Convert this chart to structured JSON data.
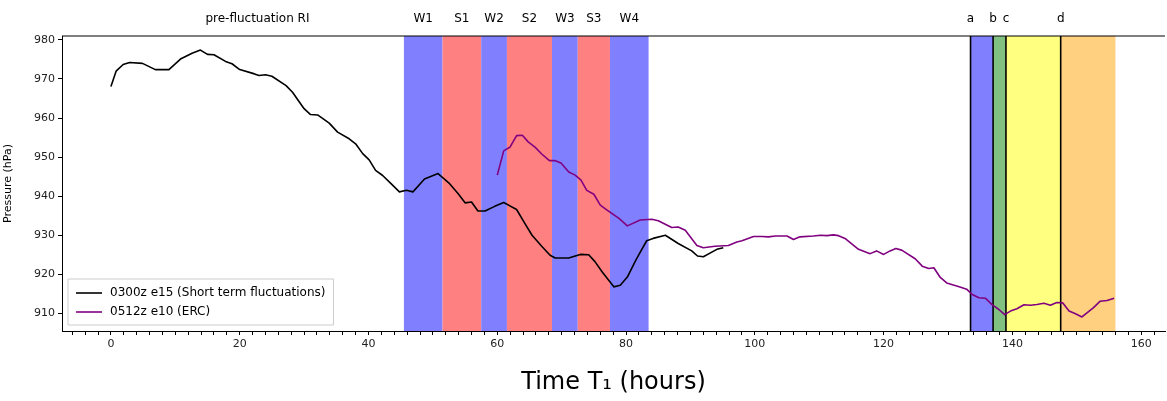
{
  "chart_data": {
    "type": "line",
    "xlabel": "Time T₁ (hours)",
    "ylabel": "Pressure (hPa)",
    "xlim": [
      -7.6,
      163.7
    ],
    "ylim": [
      905.5,
      981
    ],
    "xticks": [
      {
        "value": -6,
        "label": null
      },
      {
        "value": -4,
        "label": null
      },
      {
        "value": -2,
        "label": null
      },
      0,
      {
        "value": 2,
        "label": null
      },
      {
        "value": 4,
        "label": null
      },
      {
        "value": 6,
        "label": null
      },
      {
        "value": 8,
        "label": null
      },
      {
        "value": 10,
        "label": null
      },
      {
        "value": 12,
        "label": null
      },
      {
        "value": 14,
        "label": null
      },
      {
        "value": 16,
        "label": null
      },
      {
        "value": 18,
        "label": null
      },
      20,
      {
        "value": 22,
        "label": null
      },
      {
        "value": 24,
        "label": null
      },
      {
        "value": 26,
        "label": null
      },
      {
        "value": 28,
        "label": null
      },
      {
        "value": 30,
        "label": null
      },
      {
        "value": 32,
        "label": null
      },
      {
        "value": 34,
        "label": null
      },
      {
        "value": 36,
        "label": null
      },
      {
        "value": 38,
        "label": null
      },
      40,
      {
        "value": 42,
        "label": null
      },
      {
        "value": 44,
        "label": null
      },
      {
        "value": 46,
        "label": null
      },
      {
        "value": 48,
        "label": null
      },
      {
        "value": 50,
        "label": null
      },
      {
        "value": 52,
        "label": null
      },
      {
        "value": 54,
        "label": null
      },
      {
        "value": 56,
        "label": null
      },
      {
        "value": 58,
        "label": null
      },
      60,
      {
        "value": 62,
        "label": null
      },
      {
        "value": 64,
        "label": null
      },
      {
        "value": 66,
        "label": null
      },
      {
        "value": 68,
        "label": null
      },
      {
        "value": 70,
        "label": null
      },
      {
        "value": 72,
        "label": null
      },
      {
        "value": 74,
        "label": null
      },
      {
        "value": 76,
        "label": null
      },
      {
        "value": 78,
        "label": null
      },
      80,
      {
        "value": 82,
        "label": null
      },
      {
        "value": 84,
        "label": null
      },
      {
        "value": 86,
        "label": null
      },
      {
        "value": 88,
        "label": null
      },
      {
        "value": 90,
        "label": null
      },
      {
        "value": 92,
        "label": null
      },
      {
        "value": 94,
        "label": null
      },
      {
        "value": 96,
        "label": null
      },
      {
        "value": 98,
        "label": null
      },
      100,
      {
        "value": 102,
        "label": null
      },
      {
        "value": 104,
        "label": null
      },
      {
        "value": 106,
        "label": null
      },
      {
        "value": 108,
        "label": null
      },
      {
        "value": 110,
        "label": null
      },
      {
        "value": 112,
        "label": null
      },
      {
        "value": 114,
        "label": null
      },
      {
        "value": 116,
        "label": null
      },
      {
        "value": 118,
        "label": null
      },
      120,
      {
        "value": 122,
        "label": null
      },
      {
        "value": 124,
        "label": null
      },
      {
        "value": 126,
        "label": null
      },
      {
        "value": 128,
        "label": null
      },
      {
        "value": 130,
        "label": null
      },
      {
        "value": 132,
        "label": null
      },
      {
        "value": 134,
        "label": null
      },
      {
        "value": 136,
        "label": null
      },
      {
        "value": 138,
        "label": null
      },
      140,
      {
        "value": 142,
        "label": null
      },
      {
        "value": 144,
        "label": null
      },
      {
        "value": 146,
        "label": null
      },
      {
        "value": 148,
        "label": null
      },
      {
        "value": 150,
        "label": null
      },
      {
        "value": 152,
        "label": null
      },
      {
        "value": 154,
        "label": null
      },
      {
        "value": 156,
        "label": null
      },
      {
        "value": 158,
        "label": null
      },
      160,
      {
        "value": 162,
        "label": null
      }
    ],
    "yticks": [
      910,
      920,
      930,
      940,
      950,
      960,
      970,
      980
    ],
    "legend": "bottom left",
    "marker": "none",
    "line_style": "solid",
    "series": [
      {
        "name": "0300z e15 (Short term fluctuations)",
        "color": "#000000",
        "x": [
          0,
          0.8,
          1.9,
          2.9,
          4.9,
          6.9,
          9.0,
          10.8,
          12.6,
          13.9,
          15.0,
          16.0,
          17.8,
          18.8,
          20,
          21.9,
          23.0,
          24.0,
          25.0,
          27.2,
          28.2,
          30.0,
          31.0,
          32.1,
          33.9,
          35.2,
          37.0,
          38.0,
          39.1,
          40.1,
          41.1,
          42.2,
          43.5,
          44.8,
          45.9,
          46.9,
          48.7,
          50.8,
          52.6,
          53.9,
          55.0,
          56.0,
          57.0,
          58.1,
          59.6,
          61.0,
          63.0,
          64.3,
          65.4,
          66.9,
          68.2,
          69.0,
          71.1,
          72.9,
          74.2,
          75.2,
          76.3,
          78.1,
          79.1,
          80.2,
          81.5,
          83.2,
          84.2,
          86.1,
          88.1,
          90.2,
          91.1,
          92.0,
          94.1,
          95.1
        ],
        "values": [
          968.1,
          972.0,
          973.7,
          974.2,
          974.0,
          972.4,
          972.4,
          975.1,
          976.6,
          977.4,
          976.3,
          976.2,
          974.5,
          973.9,
          972.4,
          971.5,
          970.9,
          971.1,
          970.7,
          968.3,
          966.6,
          962.4,
          960.9,
          960.8,
          958.7,
          956.4,
          954.7,
          953.4,
          950.9,
          949.3,
          946.6,
          945.3,
          943.2,
          941.1,
          941.5,
          941.1,
          944.4,
          945.8,
          943.2,
          940.7,
          938.3,
          938.5,
          936.2,
          936.2,
          937.4,
          938.4,
          936.6,
          933.0,
          930.0,
          927.2,
          924.9,
          924.2,
          924.2,
          925.1,
          925.0,
          923.2,
          920.6,
          916.8,
          917.2,
          919.3,
          923.6,
          928.6,
          929.2,
          930.0,
          927.9,
          926.0,
          924.7,
          924.5,
          926.4,
          926.8
        ]
      },
      {
        "name": "0512z e10 (ERC)",
        "color": "#800080",
        "x": [
          60.0,
          61.0,
          62.0,
          63.0,
          63.9,
          64.8,
          65.9,
          66.9,
          68.1,
          69.0,
          69.9,
          71.1,
          72.1,
          73.0,
          73.9,
          75.0,
          76.0,
          77.0,
          78.9,
          80.2,
          82.2,
          84.0,
          85.0,
          87.1,
          88.1,
          89.2,
          91.0,
          92.0,
          93.8,
          95.9,
          97.2,
          98.0,
          99.8,
          101.1,
          102.1,
          103.2,
          105.0,
          106.0,
          107.0,
          109.1,
          110.2,
          111.2,
          112.2,
          113.0,
          114.0,
          116.1,
          117.9,
          118.9,
          120.0,
          121.0,
          121.9,
          122.8,
          124.9,
          126.0,
          127.0,
          127.8,
          128.8,
          129.8,
          131.6,
          132.9,
          133.7,
          134.8,
          135.8,
          136.8,
          137.9,
          138.8,
          139.7,
          140.7,
          141.8,
          142.8,
          143.8,
          144.9,
          145.9,
          146.9,
          147.8,
          148.8,
          149.8,
          150.8,
          152.6,
          153.6,
          154.7,
          155.8
        ],
        "values": [
          945.4,
          951.6,
          952.6,
          955.5,
          955.6,
          953.9,
          952.5,
          950.8,
          949.1,
          949.1,
          948.5,
          946.2,
          945.4,
          944.1,
          941.5,
          940.5,
          937.7,
          936.5,
          934.3,
          932.4,
          933.9,
          934.1,
          933.7,
          932.0,
          932.1,
          931.3,
          927.4,
          926.8,
          927.2,
          927.4,
          928.3,
          928.6,
          929.7,
          929.7,
          929.6,
          929.8,
          929.8,
          928.9,
          929.6,
          929.8,
          930.0,
          929.9,
          930.1,
          929.9,
          929.2,
          926.4,
          925.3,
          926.0,
          925.1,
          926.0,
          926.6,
          926.2,
          924.0,
          922.1,
          921.5,
          921.7,
          919.2,
          917.8,
          916.9,
          916.2,
          914.9,
          914.0,
          913.9,
          912.3,
          911.0,
          909.7,
          910.6,
          911.2,
          912.2,
          912.1,
          912.3,
          912.6,
          912.1,
          912.8,
          912.7,
          910.6,
          909.9,
          909.1,
          911.5,
          913.1,
          913.3,
          913.9
        ]
      }
    ],
    "bands": [
      {
        "axis": "x",
        "from": 45.5,
        "to": 51.5,
        "label": "W1",
        "color": "#8080ff"
      },
      {
        "axis": "x",
        "from": 51.5,
        "to": 57.5,
        "label": "S1",
        "color": "#ff8080"
      },
      {
        "axis": "x",
        "from": 57.5,
        "to": 61.5,
        "label": "W2",
        "color": "#8080ff"
      },
      {
        "axis": "x",
        "from": 61.5,
        "to": 68.5,
        "label": "S2",
        "color": "#ff8080"
      },
      {
        "axis": "x",
        "from": 68.5,
        "to": 72.5,
        "label": "W3",
        "color": "#8080ff"
      },
      {
        "axis": "x",
        "from": 72.5,
        "to": 77.5,
        "label": "S3",
        "color": "#ff8080"
      },
      {
        "axis": "x",
        "from": 77.5,
        "to": 83.5,
        "label": "W4",
        "color": "#8080ff"
      },
      {
        "axis": "x",
        "from": 133.5,
        "to": 137,
        "color": "#8080ff"
      },
      {
        "axis": "x",
        "from": 137,
        "to": 139,
        "color": "#80c080"
      },
      {
        "axis": "x",
        "from": 139,
        "to": 147.5,
        "color": "#ffff80"
      },
      {
        "axis": "x",
        "from": 147.5,
        "to": 156,
        "color": "#ffd080"
      }
    ],
    "ref_lines": [
      {
        "axis": "x",
        "value": 133.5,
        "label": "a",
        "color": "#000000",
        "line_style": "solid"
      },
      {
        "axis": "x",
        "value": 137,
        "label": "b",
        "color": "#000000",
        "line_style": "solid"
      },
      {
        "axis": "x",
        "value": 139,
        "label": "c",
        "color": "#000000",
        "line_style": "solid"
      },
      {
        "axis": "x",
        "value": 147.5,
        "label": "d",
        "color": "#000000",
        "line_style": "solid"
      }
    ],
    "annotations": [
      "pre-fluctuation RI"
    ]
  }
}
